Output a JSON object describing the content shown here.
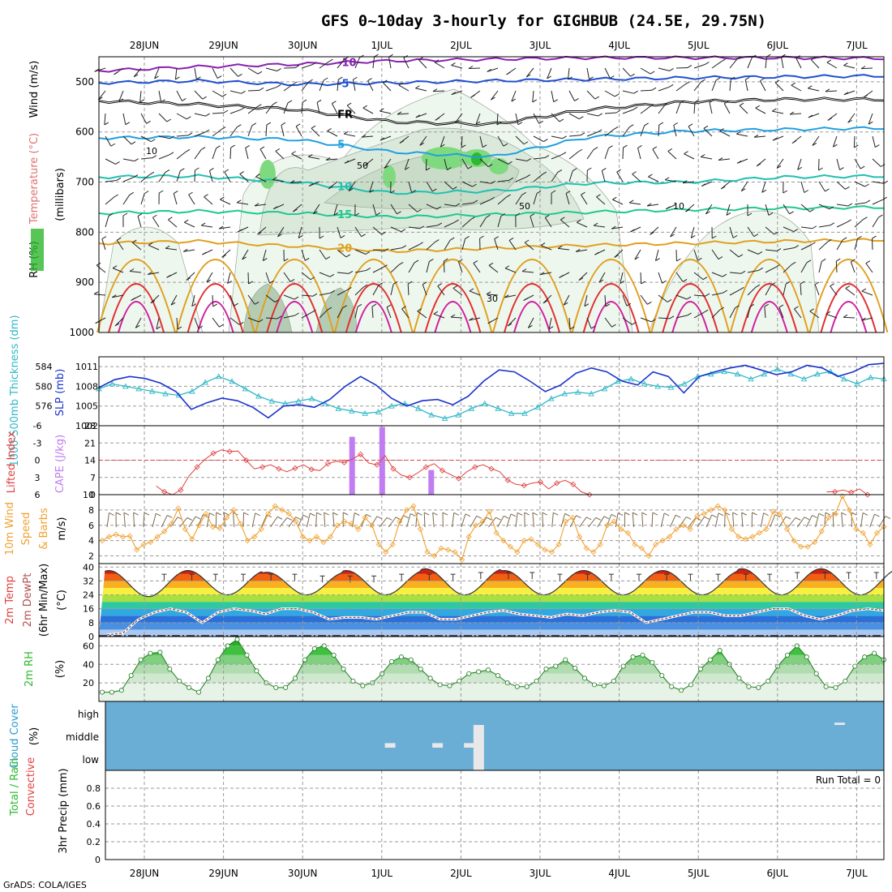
{
  "title": "GFS 0~10day 3-hourly for GIGHBUB (24.5E, 29.75N)",
  "credit": "GrADS: COLA/IGES",
  "colors": {
    "cloud_bg": "#6aaed6",
    "temp_line": "#e04040",
    "cape_bar": "#c07cf0",
    "slp_line": "#1a33cc",
    "thick_line": "#30b8c8",
    "wind_line": "#f0a030",
    "rh_fill": "#2db82d",
    "mid_rh_green": "#7fd97f",
    "contour_purple": "#8a20b0",
    "contour_blue": "#2050d0",
    "contour_cyan": "#20a0e0",
    "contour_teal": "#20c0b0",
    "contour_green": "#20c890",
    "contour_orange": "#e0a020",
    "contour_red": "#e03030",
    "contour_magenta": "#d020a0"
  },
  "chart_data": [
    {
      "panel": "upper-air",
      "type": "heatmap",
      "ylabel_parts": [
        "RH (%)",
        "Temperature (°C)",
        "Wind (m/s)"
      ],
      "ylabel_units": "(millibars)",
      "yticks": [
        "500",
        "600",
        "700",
        "800",
        "900",
        "1000"
      ],
      "ylim": [
        450,
        1000
      ],
      "x": [
        "28JUN",
        "29JUN",
        "30JUN",
        "1JUL",
        "2JUL",
        "3JUL",
        "4JUL",
        "5JUL",
        "6JUL",
        "7JUL"
      ],
      "contours": [
        {
          "label": "-10",
          "value": -10,
          "levels_mb": [
            478,
            470,
            465,
            458,
            455,
            452,
            452,
            452,
            453
          ]
        },
        {
          "label": "-5",
          "value": -5,
          "levels_mb": [
            502,
            498,
            505,
            502,
            498,
            495,
            492,
            490,
            488
          ]
        },
        {
          "label": "FR",
          "value": 0,
          "levels_mb": [
            538,
            545,
            555,
            580,
            585,
            555,
            540,
            535,
            535
          ]
        },
        {
          "label": "5",
          "value": 5,
          "levels_mb": [
            612,
            610,
            615,
            640,
            650,
            610,
            598,
            595,
            592
          ]
        },
        {
          "label": "10",
          "value": 10,
          "levels_mb": [
            690,
            688,
            700,
            722,
            718,
            702,
            700,
            690,
            688
          ]
        },
        {
          "label": "15",
          "value": 15,
          "levels_mb": [
            762,
            758,
            762,
            770,
            765,
            760,
            755,
            752,
            750
          ]
        },
        {
          "label": "20",
          "value": 20,
          "levels_mb": [
            822,
            818,
            828,
            838,
            832,
            826,
            822,
            818,
            815
          ]
        }
      ],
      "rh_labels": [
        "10",
        "50",
        "50",
        "30",
        "10"
      ]
    },
    {
      "panel": "thickness-slp",
      "type": "line",
      "ylabel_left": "1000-500mb Thickness (dm)",
      "ylabel_right": "SLP (mb)",
      "left_ticks": [
        "584",
        "580",
        "576"
      ],
      "right_ticks": [
        "1011",
        "1008",
        "1005",
        "1002"
      ],
      "slp_range": [
        1002,
        1012.5
      ],
      "slp": [
        1007.8,
        1009,
        1009.5,
        1009.2,
        1008.5,
        1007.2,
        1004.5,
        1005.5,
        1006.2,
        1005.8,
        1004.8,
        1003.2,
        1005,
        1005.2,
        1004.8,
        1006,
        1008,
        1009.5,
        1008.2,
        1006.2,
        1005,
        1005.8,
        1006,
        1005.2,
        1006.5,
        1008.8,
        1010.5,
        1010.2,
        1008.8,
        1007.2,
        1008.2,
        1010,
        1010.8,
        1010.2,
        1008.8,
        1008.2,
        1010.2,
        1009.5,
        1007,
        1009.5,
        1010.2,
        1010.8,
        1011.2,
        1010.5,
        1009.8,
        1010.2,
        1011.2,
        1010.8,
        1009.5,
        1010.2,
        1011.3,
        1011.5
      ],
      "thickness": [
        579.5,
        580.5,
        580,
        579.5,
        579,
        578.5,
        578.2,
        579,
        580.8,
        582,
        581,
        579.5,
        578,
        577,
        576.5,
        577,
        577.5,
        576.5,
        575.5,
        575,
        574.5,
        574.8,
        576,
        576.5,
        575.5,
        574.2,
        573.5,
        574.2,
        575.5,
        576.5,
        575.5,
        574.5,
        574.5,
        575.8,
        577.5,
        578.5,
        578.8,
        578.5,
        579.5,
        581,
        581.5,
        580.5,
        580,
        579.8,
        580.5,
        582,
        582.5,
        583,
        582.5,
        581.5,
        582.5,
        583.5,
        582.5,
        581.5,
        582.5,
        583,
        581.5,
        580.5,
        581.8,
        581.5
      ]
    },
    {
      "panel": "lifted-index-cape",
      "type": "bar",
      "ylabel_left": "Lifted Index",
      "ylabel_right": "CAPE (J/kg)",
      "left_ticks": [
        "-6",
        "-3",
        "0",
        "3",
        "6"
      ],
      "right_ticks": [
        "28",
        "21",
        "14",
        "7",
        "0"
      ],
      "lifted_index": [
        null,
        null,
        null,
        null,
        null,
        null,
        null,
        4.5,
        5.5,
        6,
        5.2,
        2.8,
        1.2,
        -0.2,
        -1.2,
        -1.8,
        -1.5,
        -1.6,
        0,
        1.5,
        1.2,
        0.8,
        1.5,
        2,
        1.4,
        0.8,
        1.6,
        1.8,
        0.6,
        0.2,
        0.4,
        -0.2,
        -1,
        0.5,
        0.8,
        -0.8,
        1.5,
        2.6,
        3,
        2.2,
        1.2,
        0.6,
        1.8,
        2.5,
        3.2,
        2,
        1.2,
        0.8,
        1.5,
        2,
        3.5,
        4.2,
        4.4,
        4,
        3.8,
        5,
        4,
        3.5,
        4.2,
        5.5,
        6.5,
        null,
        null,
        null,
        null,
        null,
        null,
        null,
        null,
        null,
        null,
        null,
        null,
        null,
        null,
        null,
        null,
        null,
        null,
        null,
        null,
        null,
        null,
        null,
        null,
        null,
        null,
        null,
        null,
        5.5,
        5.5,
        5.2,
        5.6,
        5,
        6.5,
        6.5,
        null
      ],
      "cape_bars": [
        {
          "x": 2.62,
          "value": 23.5
        },
        {
          "x": 3.0,
          "value": 27.5
        },
        {
          "x": 3.62,
          "value": 10
        }
      ]
    },
    {
      "panel": "10m-wind",
      "type": "line",
      "ylabel": "10m Wind Speed & Barbs (m/s)",
      "yticks": [
        "10",
        "8",
        "6",
        "4",
        "2"
      ],
      "ylim": [
        1,
        10
      ],
      "values": [
        4,
        4.5,
        4.8,
        4.5,
        4.6,
        2.8,
        3.5,
        3.8,
        4.5,
        5.2,
        6.2,
        8.2,
        5.5,
        4.2,
        6,
        7.5,
        5.8,
        5.6,
        7,
        8,
        6.2,
        4,
        4.5,
        5.5,
        7.5,
        8.5,
        8,
        7.5,
        6.5,
        4.5,
        4,
        4.5,
        3.8,
        4.5,
        6,
        6.5,
        6.2,
        5.5,
        7,
        6,
        3.5,
        2.5,
        3.5,
        6.5,
        8,
        8.5,
        5.5,
        2.5,
        2,
        3,
        2.8,
        2.5,
        1.5,
        4.5,
        6,
        6.5,
        7.8,
        5,
        4,
        3.2,
        2.5,
        4,
        4.2,
        3.5,
        2.8,
        2.5,
        3.5,
        6.5,
        7,
        4.5,
        3,
        2.5,
        3.5,
        6,
        6.5,
        5.5,
        5,
        3.5,
        3,
        2,
        3.5,
        4,
        4.5,
        5.5,
        6,
        5.5,
        7.2,
        7.5,
        8,
        8.5,
        8,
        5.5,
        4.5,
        4.2,
        4.5,
        5,
        5.5,
        7.8,
        7.5,
        5.5,
        4,
        3.2,
        3.2,
        3.8,
        5.2,
        7,
        7.5,
        9.8,
        8,
        5.5,
        5,
        3.5,
        5,
        5.8
      ]
    },
    {
      "panel": "2m-temp",
      "type": "area",
      "ylabel": "2m Temp 2m DewPt (6hr Min/Max) (°C)",
      "yticks": [
        "40",
        "32",
        "24",
        "16",
        "8",
        "0"
      ],
      "ylim": [
        0,
        42
      ],
      "minmax_label": "(6hr Min/Max)",
      "daily_min_c": [
        23,
        24,
        24,
        24,
        24,
        24,
        24,
        24,
        24,
        24
      ],
      "daily_max_c": [
        38,
        38,
        37,
        38,
        39,
        38,
        38,
        38,
        39,
        39
      ],
      "dewpoint_c": [
        1,
        2,
        10,
        14,
        16,
        14,
        8,
        14,
        16,
        15,
        13,
        16,
        16,
        14,
        10,
        11,
        11,
        10,
        12,
        14,
        14,
        10,
        10,
        12,
        14,
        15,
        13,
        12,
        11,
        13,
        12,
        14,
        15,
        14,
        8,
        10,
        12,
        14,
        14,
        12,
        12,
        14,
        16,
        16,
        12,
        10,
        12,
        15,
        16,
        15
      ]
    },
    {
      "panel": "2m-rh",
      "type": "area",
      "ylabel": "2m RH (%)",
      "yticks": [
        "60",
        "40",
        "20"
      ],
      "ylim": [
        0,
        70
      ],
      "values": [
        10,
        10,
        12,
        28,
        45,
        52,
        53,
        35,
        22,
        15,
        10,
        25,
        45,
        60,
        67,
        50,
        33,
        20,
        15,
        15,
        25,
        45,
        57,
        60,
        50,
        35,
        22,
        17,
        20,
        30,
        43,
        48,
        45,
        35,
        25,
        18,
        17,
        22,
        30,
        32,
        34,
        28,
        20,
        16,
        16,
        22,
        35,
        38,
        45,
        36,
        25,
        18,
        17,
        22,
        38,
        48,
        50,
        42,
        28,
        16,
        12,
        18,
        35,
        45,
        55,
        40,
        25,
        16,
        15,
        22,
        38,
        50,
        60,
        48,
        30,
        16,
        15,
        22,
        38,
        48,
        52,
        45
      ]
    },
    {
      "panel": "cloud-cover",
      "type": "bar",
      "ylabel": "Cloud Cover (%)",
      "levels": [
        "high",
        "middle",
        "low"
      ],
      "bars": [
        {
          "x": 3.1,
          "level": "middle",
          "value": 20
        },
        {
          "x": 3.7,
          "level": "middle",
          "value": 20
        },
        {
          "x": 4.1,
          "level": "middle",
          "value": 20
        },
        {
          "x": 4.22,
          "level": "middle",
          "value": 100
        },
        {
          "x": 4.22,
          "level": "low",
          "value": 100
        },
        {
          "x": 8.78,
          "level": "high",
          "value": 10
        }
      ]
    },
    {
      "panel": "3hr-precip",
      "type": "bar",
      "ylabel_parts": [
        "Total / Rain",
        "Convective"
      ],
      "ylabel": "3hr Precip (mm)",
      "yticks": [
        "0.8",
        "0.6",
        "0.4",
        "0.2",
        "0"
      ],
      "ylim": [
        0,
        1
      ],
      "run_total": "Run Total = 0",
      "values": []
    }
  ]
}
